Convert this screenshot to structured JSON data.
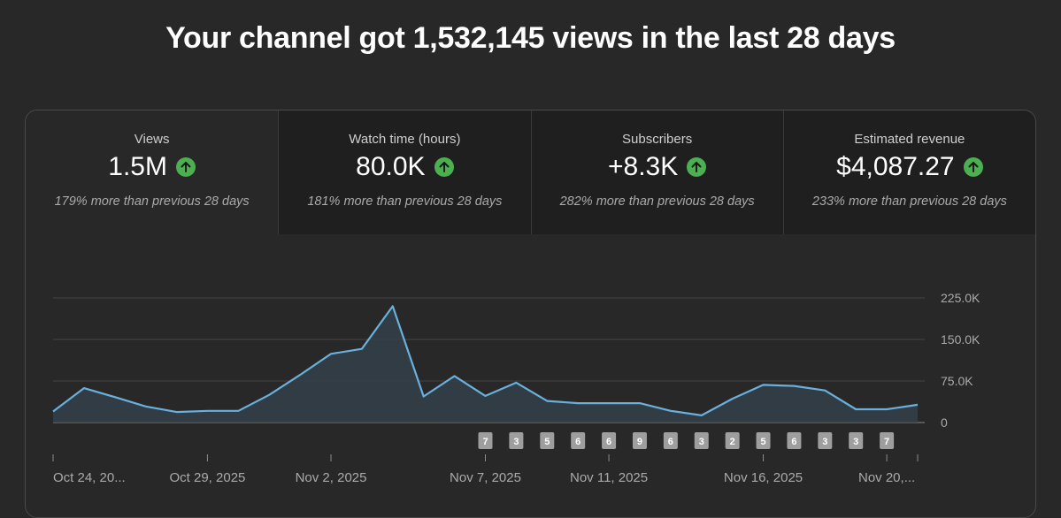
{
  "header": {
    "title": "Your channel got 1,532,145 views in the last 28 days"
  },
  "tabs": [
    {
      "label": "Views",
      "value": "1.5M",
      "compare": "179% more than previous 28 days",
      "icon": "arrow-up-icon"
    },
    {
      "label": "Watch time (hours)",
      "value": "80.0K",
      "compare": "181% more than previous 28 days",
      "icon": "arrow-up-icon"
    },
    {
      "label": "Subscribers",
      "value": "+8.3K",
      "compare": "282% more than previous 28 days",
      "icon": "arrow-up-icon"
    },
    {
      "label": "Estimated revenue",
      "value": "$4,087.27",
      "compare": "233% more than previous 28 days",
      "icon": "arrow-up-icon"
    }
  ],
  "colors": {
    "line": "#6ab0dc",
    "area": "#33404a",
    "positive": "#4caf50",
    "background": "#282828"
  },
  "chart_data": {
    "type": "area",
    "title": "Views",
    "x": [
      "Oct 24",
      "Oct 25",
      "Oct 26",
      "Oct 27",
      "Oct 28",
      "Oct 29",
      "Oct 30",
      "Oct 31",
      "Nov 1",
      "Nov 2",
      "Nov 3",
      "Nov 4",
      "Nov 5",
      "Nov 6",
      "Nov 7",
      "Nov 8",
      "Nov 9",
      "Nov 10",
      "Nov 11",
      "Nov 12",
      "Nov 13",
      "Nov 14",
      "Nov 15",
      "Nov 16",
      "Nov 17",
      "Nov 18",
      "Nov 19",
      "Nov 20",
      "Nov 21"
    ],
    "series": [
      {
        "name": "Views",
        "values": [
          20000,
          62000,
          46000,
          29000,
          19000,
          21000,
          21000,
          50000,
          86000,
          124000,
          133000,
          210000,
          47000,
          84000,
          48000,
          72000,
          39000,
          35000,
          35000,
          35000,
          21000,
          13000,
          43000,
          68000,
          66000,
          58000,
          24000,
          24000,
          32000
        ]
      }
    ],
    "ylim": [
      0,
      225000
    ],
    "yticks": [
      {
        "value": 225000,
        "label": "225.0K"
      },
      {
        "value": 150000,
        "label": "150.0K"
      },
      {
        "value": 75000,
        "label": "75.0K"
      },
      {
        "value": 0,
        "label": "0"
      }
    ],
    "xticks": [
      {
        "index": 0,
        "label": "Oct 24, 20..."
      },
      {
        "index": 5,
        "label": "Oct 29, 2025"
      },
      {
        "index": 9,
        "label": "Nov 2, 2025"
      },
      {
        "index": 14,
        "label": "Nov 7, 2025"
      },
      {
        "index": 18,
        "label": "Nov 11, 2025"
      },
      {
        "index": 23,
        "label": "Nov 16, 2025"
      },
      {
        "index": 27,
        "label": "Nov 20,..."
      }
    ],
    "markers": [
      {
        "index": 14,
        "label": "7"
      },
      {
        "index": 15,
        "label": "3"
      },
      {
        "index": 16,
        "label": "5"
      },
      {
        "index": 17,
        "label": "6"
      },
      {
        "index": 18,
        "label": "6"
      },
      {
        "index": 19,
        "label": "9"
      },
      {
        "index": 20,
        "label": "6"
      },
      {
        "index": 21,
        "label": "3"
      },
      {
        "index": 22,
        "label": "2"
      },
      {
        "index": 23,
        "label": "5"
      },
      {
        "index": 24,
        "label": "6"
      },
      {
        "index": 25,
        "label": "3"
      },
      {
        "index": 26,
        "label": "3"
      },
      {
        "index": 27,
        "label": "7"
      }
    ],
    "grid": true
  }
}
